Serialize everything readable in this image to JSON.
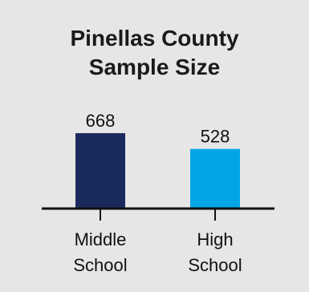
{
  "chart_data": {
    "type": "bar",
    "title_lines": [
      "Pinellas County",
      "Sample Size"
    ],
    "categories": [
      [
        "Middle",
        "School"
      ],
      [
        "High",
        "School"
      ]
    ],
    "values": [
      668,
      528
    ],
    "colors": [
      "#1b2a5c",
      "#00a6e6"
    ],
    "xlabel": "",
    "ylabel": "",
    "ylim": [
      0,
      668
    ],
    "grid": false,
    "legend": "none",
    "data_labels": true
  }
}
